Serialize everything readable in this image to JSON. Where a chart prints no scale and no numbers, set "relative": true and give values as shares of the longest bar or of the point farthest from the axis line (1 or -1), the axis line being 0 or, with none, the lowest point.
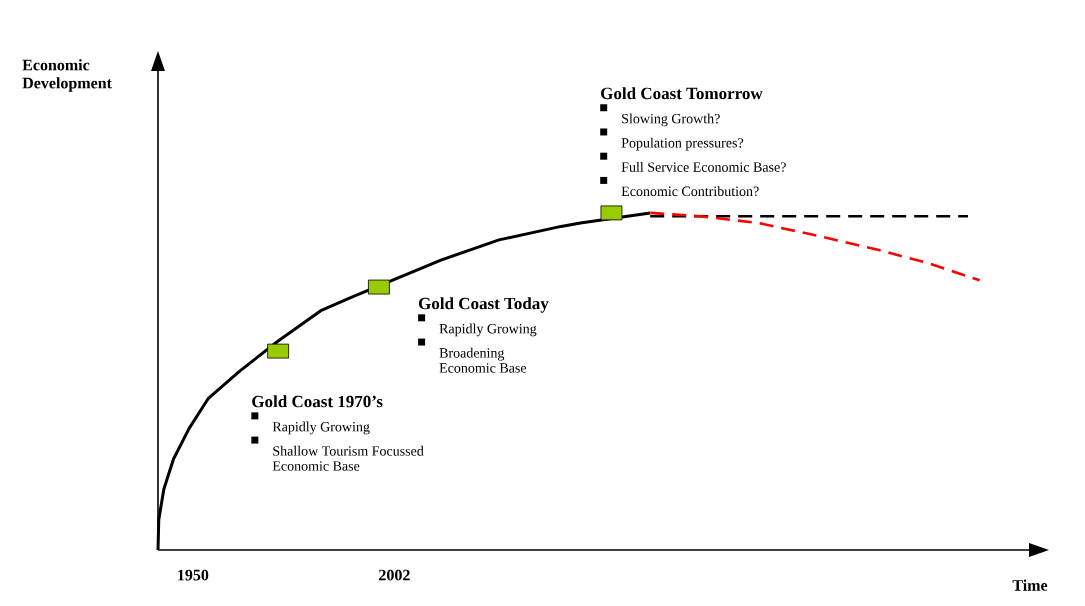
{
  "chart_data": {
    "type": "line",
    "relative": true,
    "xlabel": "Time",
    "xlim": [
      1941,
      2166
    ],
    "xticks": [
      1950,
      2002
    ],
    "series": [
      {
        "type": "scatter",
        "color": "#99cc00",
        "marker": "square",
        "x": [
          1972,
          1998,
          2058
        ],
        "values": [
          0.59,
          0.78,
          1.0
        ]
      },
      {
        "color": "#000000",
        "line_style": "solid",
        "x": [
          1941,
          1941.2,
          1942.5,
          1945,
          1949,
          1954,
          1962,
          1972,
          1983,
          1991,
          2014,
          2029,
          2045,
          2050,
          2068
        ],
        "values": [
          0,
          0.09,
          0.18,
          0.27,
          0.36,
          0.45,
          0.53,
          0.62,
          0.71,
          0.75,
          0.86,
          0.92,
          0.96,
          0.97,
          1.0
        ]
      },
      {
        "color": "#000000",
        "line_style": "dashed",
        "x": [
          2068,
          2150
        ],
        "values": [
          0.99,
          0.99
        ]
      },
      {
        "color": "#ff0000",
        "line_style": "dashed",
        "x": [
          2068,
          2081,
          2096,
          2112,
          2127,
          2140,
          2153
        ],
        "values": [
          1.0,
          0.99,
          0.97,
          0.93,
          0.89,
          0.85,
          0.8
        ]
      }
    ],
    "annotations": [
      {
        "text": "Gold Coast 1970’s",
        "x": 1972,
        "y": 0.59
      },
      "Rapidly Growing",
      "Shallow Tourism Focussed Economic Base",
      {
        "text": "Gold Coast Today",
        "x": 1998,
        "y": 0.78
      },
      "Rapidly Growing",
      "Broadening Economic Base",
      "Gold Coast Tomorrow",
      "Slowing Growth?",
      "Population pressures?",
      "Full Service Economic Base?",
      "Economic Contribution?",
      "Economic Development"
    ]
  }
}
